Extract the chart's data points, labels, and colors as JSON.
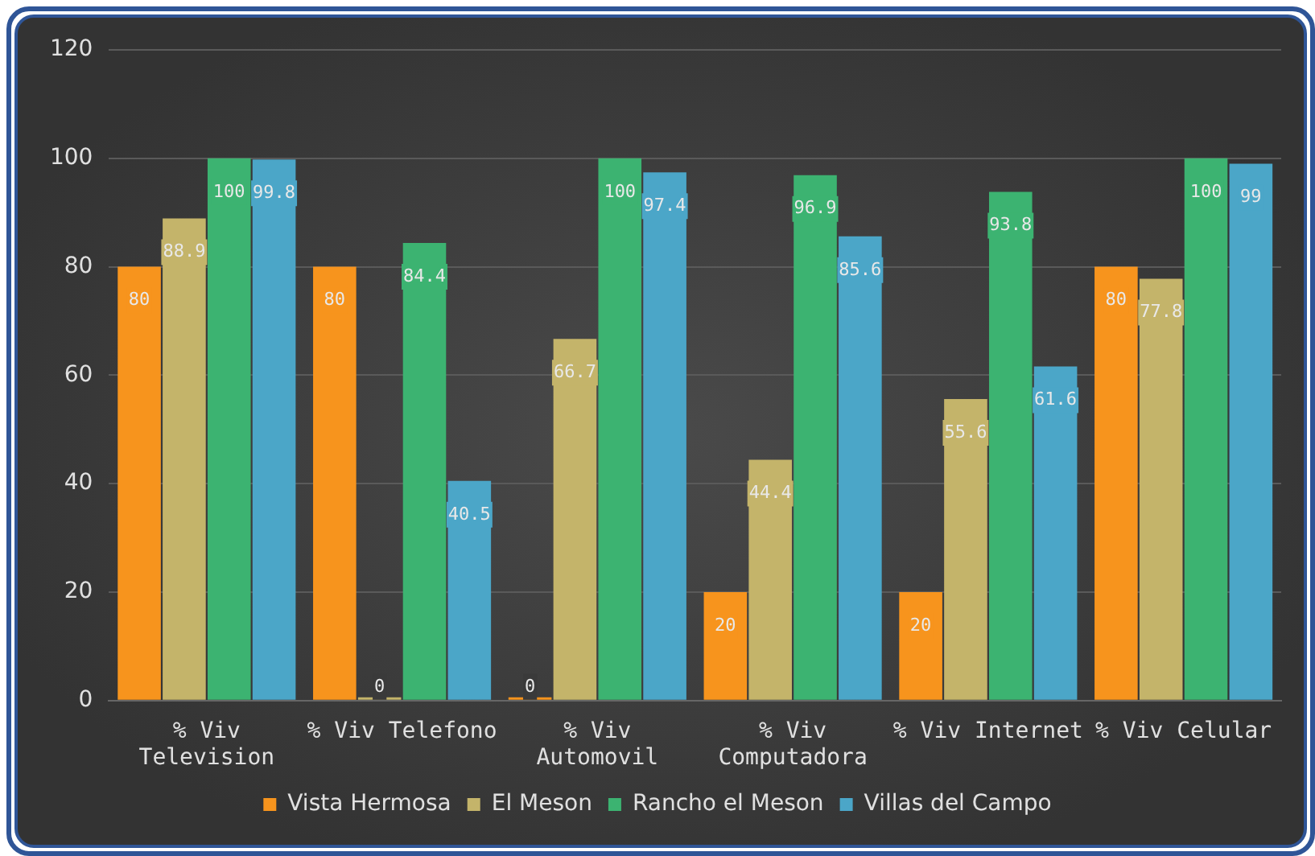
{
  "chart_data": {
    "type": "bar",
    "categories": [
      "% Viv Television",
      "% Viv Telefono",
      "% Viv Automovil",
      "% Viv Computadora",
      "% Viv Internet",
      "% Viv Celular"
    ],
    "series": [
      {
        "name": "Vista Hermosa",
        "color": "#f7941d",
        "values": [
          80,
          80,
          0,
          20,
          20,
          80
        ]
      },
      {
        "name": "El Meson",
        "color": "#c4b46a",
        "values": [
          88.9,
          0,
          66.7,
          44.4,
          55.6,
          77.8
        ]
      },
      {
        "name": "Rancho el Meson",
        "color": "#3cb371",
        "values": [
          100,
          84.4,
          100,
          96.9,
          93.8,
          100
        ]
      },
      {
        "name": "Villas del Campo",
        "color": "#4ba6c8",
        "values": [
          99.8,
          40.5,
          97.4,
          85.6,
          61.6,
          99
        ]
      }
    ],
    "ylim": [
      0,
      120
    ],
    "yticks": [
      0,
      20,
      40,
      60,
      80,
      100,
      120
    ],
    "grid": "y",
    "legend": "bottom",
    "data_labels": true
  }
}
